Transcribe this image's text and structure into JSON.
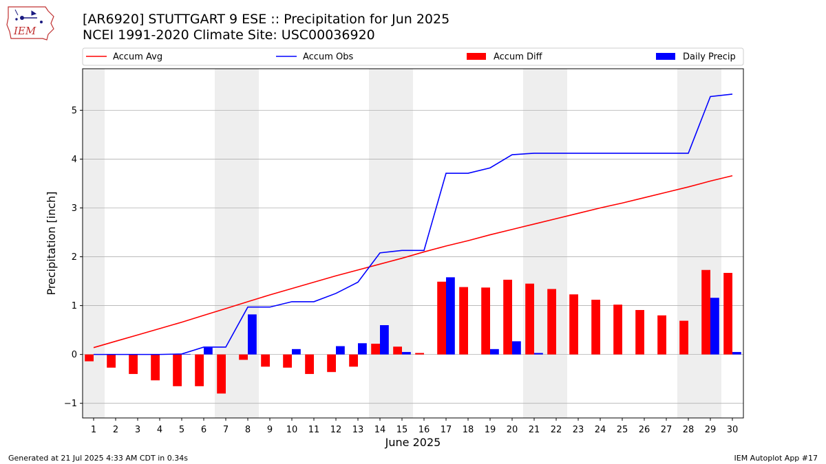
{
  "header": {
    "title_line1": "[AR6920] STUTTGART 9 ESE :: Precipitation for Jun 2025",
    "title_line2": "NCEI 1991-2020 Climate Site: USC00036920",
    "logo_text": "IEM"
  },
  "footer": {
    "generated": "Generated at 21 Jul 2025 4:33 AM CDT in 0.34s",
    "app": "IEM Autoplot App #17"
  },
  "colors": {
    "accum_avg": "#ff0000",
    "accum_obs": "#0000ff",
    "accum_diff": "#ff0000",
    "daily_precip": "#0000ff",
    "weekend_shade": "#eeeeee",
    "grid": "#b0b0b0"
  },
  "chart_data": {
    "type": "bar",
    "xlabel": "June 2025",
    "ylabel": "Precipitation [inch]",
    "ylim": [
      -1.3,
      5.85
    ],
    "yticks": [
      -1,
      0,
      1,
      2,
      3,
      4,
      5
    ],
    "ytick_labels": [
      "−1",
      "0",
      "1",
      "2",
      "3",
      "4",
      "5"
    ],
    "grid": "horizontal",
    "legend_position": "top (above plot)",
    "shaded_days": [
      1,
      7,
      8,
      14,
      15,
      21,
      22,
      28,
      29
    ],
    "categories": [
      "1",
      "2",
      "3",
      "4",
      "5",
      "6",
      "7",
      "8",
      "9",
      "10",
      "11",
      "12",
      "13",
      "14",
      "15",
      "16",
      "17",
      "18",
      "19",
      "20",
      "21",
      "22",
      "23",
      "24",
      "25",
      "26",
      "27",
      "28",
      "29",
      "30"
    ],
    "series": [
      {
        "name": "Accum Avg",
        "kind": "line",
        "values": [
          0.14,
          0.27,
          0.4,
          0.53,
          0.66,
          0.8,
          0.94,
          1.08,
          1.22,
          1.35,
          1.48,
          1.61,
          1.73,
          1.85,
          1.97,
          2.1,
          2.22,
          2.33,
          2.45,
          2.56,
          2.67,
          2.78,
          2.89,
          3.0,
          3.1,
          3.21,
          3.32,
          3.43,
          3.55,
          3.66
        ]
      },
      {
        "name": "Accum Obs",
        "kind": "line",
        "values": [
          0.0,
          0.0,
          0.0,
          0.0,
          0.01,
          0.15,
          0.15,
          0.97,
          0.97,
          1.08,
          1.08,
          1.25,
          1.48,
          2.08,
          2.13,
          2.13,
          3.71,
          3.71,
          3.82,
          4.09,
          4.12,
          4.12,
          4.12,
          4.12,
          4.12,
          4.12,
          4.12,
          4.12,
          5.28,
          5.33
        ]
      },
      {
        "name": "Accum Diff",
        "kind": "bar",
        "values": [
          -0.14,
          -0.27,
          -0.4,
          -0.53,
          -0.65,
          -0.65,
          -0.8,
          -0.11,
          -0.25,
          -0.27,
          -0.4,
          -0.36,
          -0.25,
          0.22,
          0.16,
          0.03,
          1.49,
          1.38,
          1.37,
          1.53,
          1.45,
          1.34,
          1.23,
          1.12,
          1.02,
          0.91,
          0.8,
          0.69,
          1.73,
          1.67
        ]
      },
      {
        "name": "Daily Precip",
        "kind": "bar",
        "values": [
          0.0,
          0.0,
          0.0,
          0.0,
          0.01,
          0.14,
          0.0,
          0.82,
          0.0,
          0.11,
          0.0,
          0.17,
          0.23,
          0.6,
          0.05,
          0.0,
          1.58,
          0.0,
          0.11,
          0.27,
          0.03,
          0.0,
          0.0,
          0.0,
          0.0,
          0.0,
          0.0,
          0.0,
          1.16,
          0.05
        ]
      }
    ]
  }
}
